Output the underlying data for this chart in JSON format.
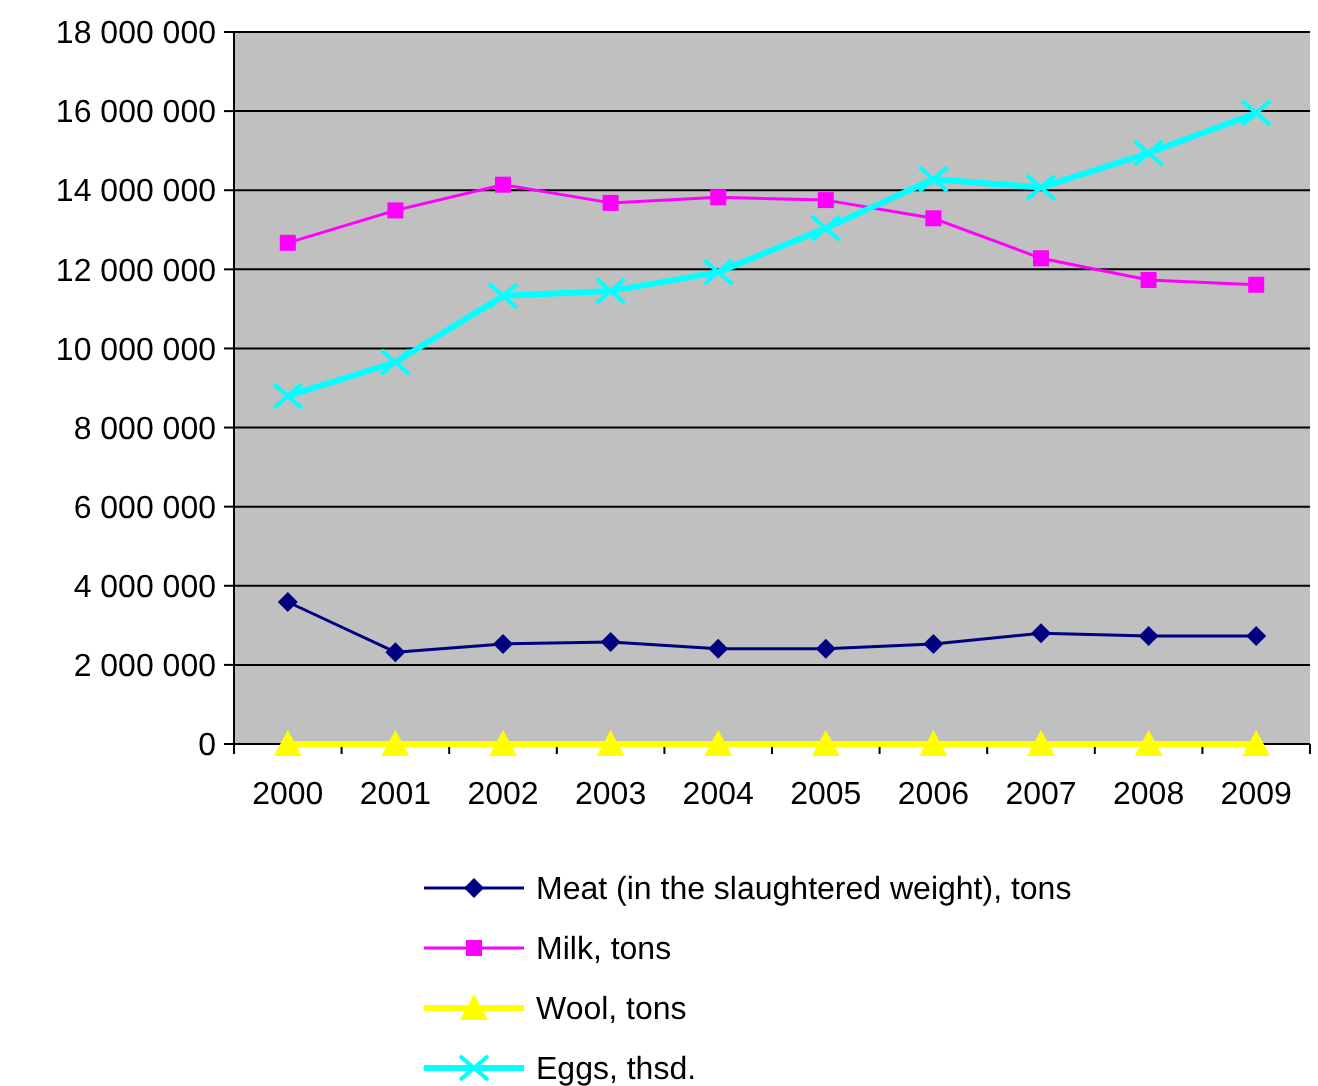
{
  "chart_data": {
    "type": "line",
    "categories": [
      "2000",
      "2001",
      "2002",
      "2003",
      "2004",
      "2005",
      "2006",
      "2007",
      "2008",
      "2009"
    ],
    "series": [
      {
        "name": "Meat (in the slaughtered weight), tons",
        "color": "#000080",
        "marker": "diamond",
        "values": [
          3590000,
          2320000,
          2530000,
          2580000,
          2410000,
          2410000,
          2530000,
          2800000,
          2730000,
          2730000
        ]
      },
      {
        "name": "Milk, tons",
        "color": "#ff00ff",
        "marker": "square",
        "values": [
          12670000,
          13490000,
          14140000,
          13680000,
          13820000,
          13750000,
          13290000,
          12280000,
          11730000,
          11610000
        ]
      },
      {
        "name": "Wool, tons",
        "color": "#ffff00",
        "marker": "triangle",
        "values": [
          0,
          0,
          0,
          0,
          0,
          0,
          0,
          0,
          0,
          0
        ]
      },
      {
        "name": "Eggs, thsd.",
        "color": "#00ffff",
        "marker": "cross",
        "values": [
          8800000,
          9650000,
          11330000,
          11450000,
          11930000,
          13040000,
          14280000,
          14070000,
          14940000,
          15950000
        ]
      }
    ],
    "ylim": [
      0,
      18000000
    ],
    "yticks": [
      {
        "value": 0,
        "label": "0"
      },
      {
        "value": 2000000,
        "label": "2 000 000"
      },
      {
        "value": 4000000,
        "label": "4 000 000"
      },
      {
        "value": 6000000,
        "label": "6 000 000"
      },
      {
        "value": 8000000,
        "label": "8 000 000"
      },
      {
        "value": 10000000,
        "label": "10 000 000"
      },
      {
        "value": 12000000,
        "label": "12 000 000"
      },
      {
        "value": 14000000,
        "label": "14 000 000"
      },
      {
        "value": 16000000,
        "label": "16 000 000"
      },
      {
        "value": 18000000,
        "label": "18 000 000"
      }
    ],
    "grid": "y",
    "legend": "bottom"
  }
}
